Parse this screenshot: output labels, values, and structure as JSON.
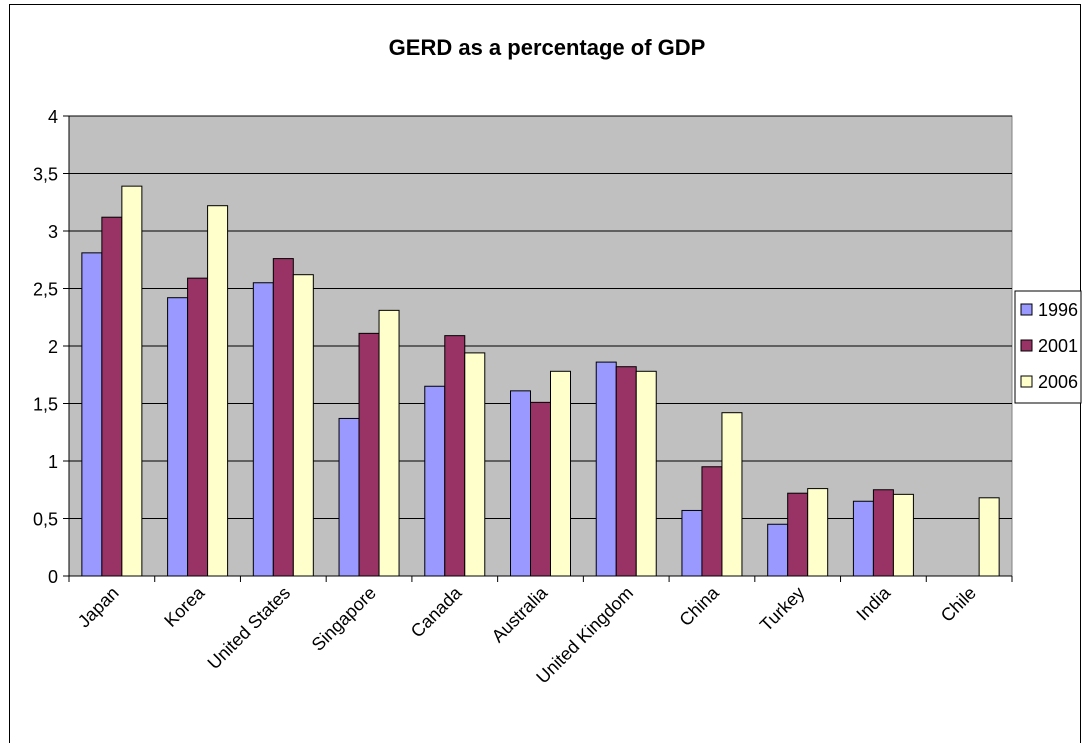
{
  "chart_data": {
    "type": "bar",
    "title": "GERD as a percentage of GDP",
    "xlabel": "",
    "ylabel": "",
    "ylim": [
      0,
      4
    ],
    "yticks": [
      "0",
      "0,5",
      "1",
      "1,5",
      "2",
      "2,5",
      "3",
      "3,5",
      "4"
    ],
    "grid": true,
    "legend_position": "right",
    "plot_background": "#c0c0c0",
    "categories": [
      "Japan",
      "Korea",
      "United States",
      "Singapore",
      "Canada",
      "Australia",
      "United Kingdom",
      "China",
      "Turkey",
      "India",
      "Chile"
    ],
    "series": [
      {
        "name": "1996",
        "color": "#9999ff",
        "values": [
          2.81,
          2.42,
          2.55,
          1.37,
          1.65,
          1.61,
          1.86,
          0.57,
          0.45,
          0.65,
          null
        ]
      },
      {
        "name": "2001",
        "color": "#993366",
        "values": [
          3.12,
          2.59,
          2.76,
          2.11,
          2.09,
          1.51,
          1.82,
          0.95,
          0.72,
          0.75,
          null
        ]
      },
      {
        "name": "2006",
        "color": "#ffffcc",
        "values": [
          3.39,
          3.22,
          2.62,
          2.31,
          1.94,
          1.78,
          1.78,
          1.42,
          0.76,
          0.71,
          0.68
        ]
      }
    ]
  }
}
